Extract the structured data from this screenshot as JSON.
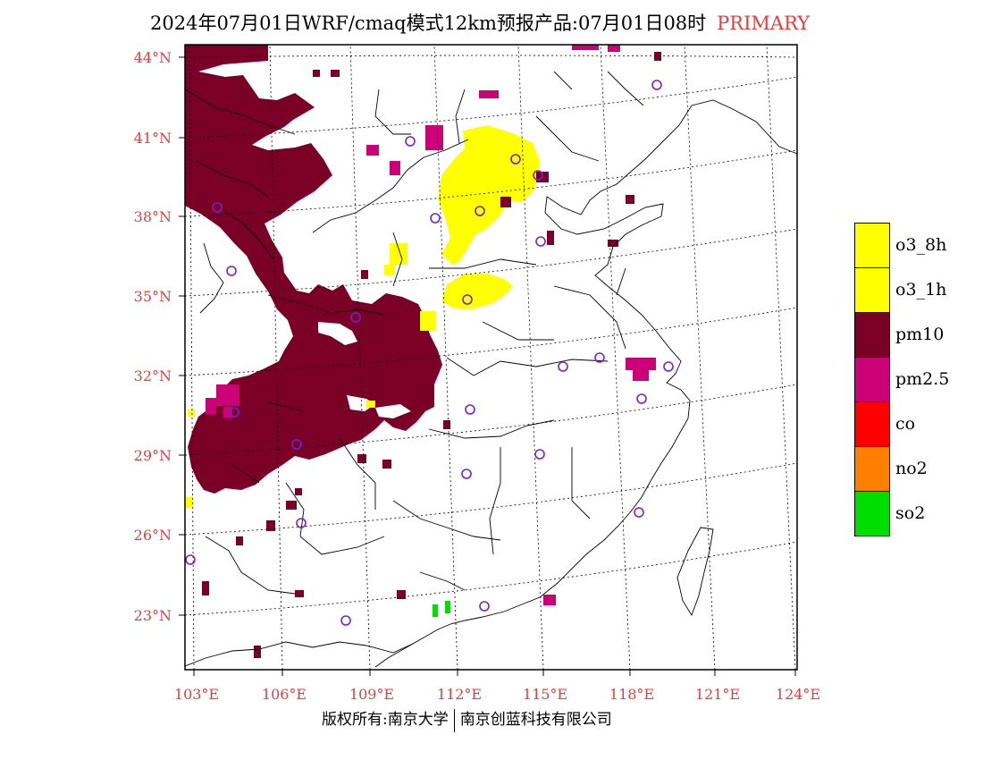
{
  "header": {
    "title": "2024年07月01日WRF/cmaq模式12km预报产品:07月01日08时",
    "tag": "PRIMARY"
  },
  "map": {
    "lat_labels": [
      "44°N",
      "41°N",
      "38°N",
      "35°N",
      "32°N",
      "29°N",
      "26°N",
      "23°N"
    ],
    "lon_labels": [
      "103°E",
      "106°E",
      "109°E",
      "112°E",
      "115°E",
      "118°E",
      "121°E",
      "124°E"
    ],
    "station_marker": "circle-icon",
    "colors": {
      "pm10": "#7a0028",
      "pm25": "#cc0077",
      "o3": "#ffff00",
      "so2": "#00dd00",
      "station": "#7a1fd6",
      "tick_label": "#e04040"
    }
  },
  "legend": [
    {
      "label": "o3_8h",
      "color": "#ffff00"
    },
    {
      "label": "o3_1h",
      "color": "#ffff00"
    },
    {
      "label": "pm10",
      "color": "#7a0028"
    },
    {
      "label": "pm2.5",
      "color": "#cc0077"
    },
    {
      "label": "co",
      "color": "#ff0000"
    },
    {
      "label": "no2",
      "color": "#ff8000"
    },
    {
      "label": "so2",
      "color": "#00dd00"
    }
  ],
  "footer": {
    "left": "版权所有:南京大学",
    "right": "南京创蓝科技有限公司"
  }
}
